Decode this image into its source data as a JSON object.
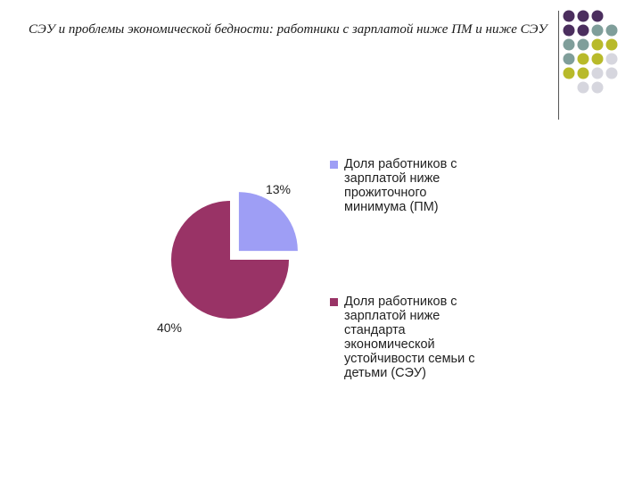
{
  "slide": {
    "title": "СЭУ и проблемы экономической бедности: работники с зарплатой ниже ПМ и ниже СЭУ"
  },
  "colors": {
    "dark_purple": "#4b2e5e",
    "gray_teal": "#7f9e9a",
    "olive": "#b8ba2a",
    "light_gray": "#d6d6de"
  },
  "decoration": {
    "dot_grid": [
      [
        "dark_purple",
        "dark_purple",
        "dark_purple",
        null
      ],
      [
        "dark_purple",
        "dark_purple",
        "gray_teal",
        "gray_teal"
      ],
      [
        "gray_teal",
        "gray_teal",
        "olive",
        "olive"
      ],
      [
        "gray_teal",
        "olive",
        "olive",
        "light_gray"
      ],
      [
        "olive",
        "olive",
        "light_gray",
        "light_gray"
      ],
      [
        null,
        "light_gray",
        "light_gray",
        null
      ]
    ]
  },
  "chart_data": {
    "type": "pie",
    "title": "",
    "categories": [
      "Доля работников с зарплатой ниже прожиточного минимума (ПМ)",
      "Доля работников с зарплатой ниже стандарта экономической устойчивости семьи с детьми (СЭУ)"
    ],
    "values": [
      13,
      40
    ],
    "display_angles_deg": [
      90,
      270
    ],
    "data_labels": [
      "13%",
      "40%"
    ],
    "colors": [
      "#9e9ef5",
      "#993366"
    ],
    "exploded": [
      true,
      false
    ],
    "legend_position": "right"
  },
  "legend": {
    "items": [
      {
        "lines": [
          "Доля работников с",
          "зарплатой ниже",
          "прожиточного",
          "минимума (ПМ)"
        ]
      },
      {
        "lines": [
          "Доля  работников с",
          "зарплатой ниже",
          "стандарта",
          "экономической",
          "устойчивости семьи с",
          "детьми  (СЭУ)"
        ]
      }
    ]
  }
}
